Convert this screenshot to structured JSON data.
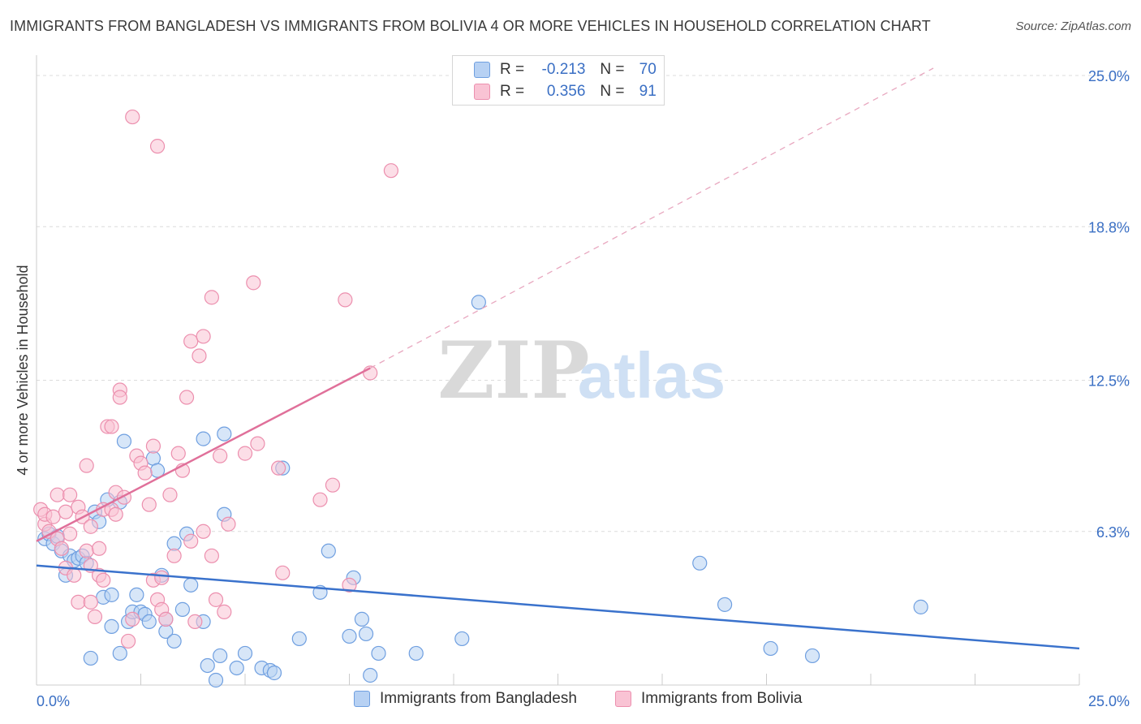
{
  "title": "IMMIGRANTS FROM BANGLADESH VS IMMIGRANTS FROM BOLIVIA 4 OR MORE VEHICLES IN HOUSEHOLD CORRELATION CHART",
  "source": "Source: ZipAtlas.com",
  "watermark": {
    "zip": "ZIP",
    "atlas": "atlas"
  },
  "legend_stats": [
    {
      "r_label": "R =",
      "r_value": "-0.213",
      "n_label": "N =",
      "n_value": "70"
    },
    {
      "r_label": "R =",
      "r_value": "0.356",
      "n_label": "N =",
      "n_value": "91"
    }
  ],
  "colors": {
    "blue_fill": "#b7d1f3",
    "blue_stroke": "#6f9fe0",
    "blue_line": "#3a72cc",
    "pink_fill": "#f9c3d4",
    "pink_stroke": "#ec8fae",
    "pink_line": "#e0709a",
    "axis_label": "#3a6fc4",
    "grid": "#dcdcdc"
  },
  "chart_data": {
    "type": "scatter",
    "title": "IMMIGRANTS FROM BANGLADESH VS IMMIGRANTS FROM BOLIVIA 4 OR MORE VEHICLES IN HOUSEHOLD CORRELATION CHART",
    "xlabel": "",
    "ylabel": "4 or more Vehicles in Household",
    "xlim": [
      0,
      25
    ],
    "ylim": [
      0,
      25.5
    ],
    "x_tick_labels": [
      "0.0%",
      "25.0%"
    ],
    "y_ticks": [
      6.3,
      12.5,
      18.8,
      25.0
    ],
    "y_tick_labels": [
      "6.3%",
      "12.5%",
      "18.8%",
      "25.0%"
    ],
    "grid": true,
    "legend_position": "top-center",
    "series": [
      {
        "name": "Immigrants from Bangladesh",
        "color": "#6f9fe0",
        "trend": {
          "x": [
            0,
            25
          ],
          "y": [
            4.9,
            1.5
          ],
          "dashed_extension": false
        },
        "points": [
          [
            0.2,
            6.0
          ],
          [
            0.3,
            6.2
          ],
          [
            0.4,
            5.8
          ],
          [
            0.5,
            6.1
          ],
          [
            0.6,
            5.5
          ],
          [
            0.7,
            4.5
          ],
          [
            0.8,
            5.3
          ],
          [
            0.9,
            5.1
          ],
          [
            1.0,
            5.2
          ],
          [
            1.1,
            5.3
          ],
          [
            1.2,
            5.0
          ],
          [
            1.3,
            1.1
          ],
          [
            1.4,
            7.1
          ],
          [
            1.5,
            6.7
          ],
          [
            1.6,
            3.6
          ],
          [
            1.7,
            7.6
          ],
          [
            1.8,
            3.7
          ],
          [
            1.8,
            2.4
          ],
          [
            2.0,
            7.5
          ],
          [
            2.0,
            1.3
          ],
          [
            2.1,
            10.0
          ],
          [
            2.2,
            2.6
          ],
          [
            2.3,
            3.0
          ],
          [
            2.4,
            3.7
          ],
          [
            2.5,
            3.0
          ],
          [
            2.6,
            2.9
          ],
          [
            2.7,
            2.6
          ],
          [
            2.8,
            9.3
          ],
          [
            2.9,
            8.8
          ],
          [
            3.0,
            4.5
          ],
          [
            3.1,
            2.2
          ],
          [
            3.1,
            2.7
          ],
          [
            3.3,
            1.8
          ],
          [
            3.3,
            5.8
          ],
          [
            3.5,
            3.1
          ],
          [
            3.6,
            6.2
          ],
          [
            3.7,
            4.1
          ],
          [
            4.0,
            2.6
          ],
          [
            4.0,
            10.1
          ],
          [
            4.1,
            0.8
          ],
          [
            4.3,
            0.2
          ],
          [
            4.4,
            1.2
          ],
          [
            4.5,
            10.3
          ],
          [
            4.5,
            7.0
          ],
          [
            4.8,
            0.7
          ],
          [
            5.0,
            1.3
          ],
          [
            5.4,
            0.7
          ],
          [
            5.6,
            0.6
          ],
          [
            5.7,
            0.5
          ],
          [
            5.9,
            8.9
          ],
          [
            6.3,
            1.9
          ],
          [
            6.8,
            3.8
          ],
          [
            7.0,
            5.5
          ],
          [
            7.5,
            2.0
          ],
          [
            7.6,
            4.4
          ],
          [
            7.8,
            2.7
          ],
          [
            7.9,
            2.1
          ],
          [
            8.0,
            0.4
          ],
          [
            8.2,
            1.3
          ],
          [
            9.1,
            1.3
          ],
          [
            10.2,
            1.9
          ],
          [
            10.6,
            15.7
          ],
          [
            15.9,
            5.0
          ],
          [
            16.5,
            3.3
          ],
          [
            17.6,
            1.5
          ],
          [
            18.6,
            1.2
          ],
          [
            21.2,
            3.2
          ]
        ]
      },
      {
        "name": "Immigrants from Bolivia",
        "color": "#ec8fae",
        "trend": {
          "x": [
            0,
            8
          ],
          "y": [
            5.9,
            13.0
          ],
          "dashed_extension": true,
          "dashed_to": [
            21.5,
            25.3
          ]
        },
        "points": [
          [
            0.1,
            7.2
          ],
          [
            0.2,
            6.6
          ],
          [
            0.2,
            7.0
          ],
          [
            0.3,
            6.3
          ],
          [
            0.4,
            6.9
          ],
          [
            0.5,
            7.8
          ],
          [
            0.5,
            6.0
          ],
          [
            0.6,
            5.6
          ],
          [
            0.7,
            7.1
          ],
          [
            0.7,
            4.8
          ],
          [
            0.8,
            7.8
          ],
          [
            0.8,
            6.2
          ],
          [
            0.9,
            4.5
          ],
          [
            1.0,
            3.4
          ],
          [
            1.0,
            7.3
          ],
          [
            1.1,
            6.9
          ],
          [
            1.2,
            9.0
          ],
          [
            1.2,
            5.5
          ],
          [
            1.3,
            4.9
          ],
          [
            1.3,
            3.4
          ],
          [
            1.4,
            2.8
          ],
          [
            1.5,
            4.5
          ],
          [
            1.5,
            5.6
          ],
          [
            1.6,
            7.2
          ],
          [
            1.6,
            4.3
          ],
          [
            1.7,
            10.6
          ],
          [
            1.8,
            10.6
          ],
          [
            1.8,
            7.2
          ],
          [
            1.9,
            7.9
          ],
          [
            2.0,
            12.1
          ],
          [
            2.0,
            11.8
          ],
          [
            2.1,
            7.7
          ],
          [
            2.2,
            1.8
          ],
          [
            2.3,
            2.7
          ],
          [
            2.4,
            9.4
          ],
          [
            2.5,
            9.1
          ],
          [
            2.6,
            8.7
          ],
          [
            2.7,
            7.4
          ],
          [
            2.8,
            4.3
          ],
          [
            2.8,
            9.8
          ],
          [
            2.9,
            3.5
          ],
          [
            3.0,
            4.4
          ],
          [
            3.0,
            3.1
          ],
          [
            3.1,
            2.7
          ],
          [
            3.2,
            7.8
          ],
          [
            3.3,
            5.3
          ],
          [
            3.4,
            9.5
          ],
          [
            3.5,
            8.8
          ],
          [
            3.6,
            11.8
          ],
          [
            3.7,
            14.1
          ],
          [
            3.7,
            5.9
          ],
          [
            3.8,
            2.6
          ],
          [
            3.9,
            13.5
          ],
          [
            4.0,
            14.3
          ],
          [
            4.0,
            6.3
          ],
          [
            4.2,
            15.9
          ],
          [
            4.2,
            5.3
          ],
          [
            4.3,
            3.5
          ],
          [
            4.4,
            9.4
          ],
          [
            4.5,
            3.0
          ],
          [
            4.6,
            6.6
          ],
          [
            5.0,
            9.5
          ],
          [
            5.2,
            16.5
          ],
          [
            5.3,
            9.9
          ],
          [
            5.8,
            8.9
          ],
          [
            5.9,
            4.6
          ],
          [
            6.8,
            7.6
          ],
          [
            7.1,
            8.2
          ],
          [
            7.4,
            15.8
          ],
          [
            7.5,
            4.1
          ],
          [
            8.0,
            12.8
          ],
          [
            8.5,
            21.1
          ],
          [
            2.3,
            23.3
          ],
          [
            2.9,
            22.1
          ],
          [
            1.3,
            6.5
          ],
          [
            1.9,
            7.0
          ]
        ]
      }
    ]
  },
  "legend_bottom": [
    "Immigrants from Bangladesh",
    "Immigrants from Bolivia"
  ]
}
